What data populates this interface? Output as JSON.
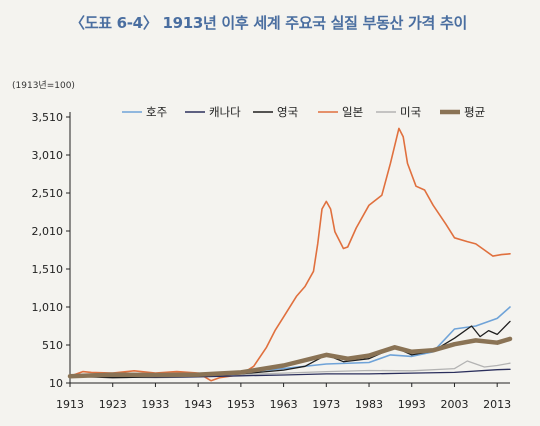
{
  "header": {
    "title": "〈도표 6-4〉 1913년 이후 세계 주요국 실질 부동산 가격 추이"
  },
  "chart_data": {
    "type": "line",
    "title": "〈도표 6-4〉 1913년 이후 세계 주요국 실질 부동산 가격 추이",
    "unit_label": "(1913년=100)",
    "xlim": [
      1913,
      2016
    ],
    "ylim": [
      10,
      3510
    ],
    "x_ticks": [
      "1913",
      "1923",
      "1933",
      "1943",
      "1953",
      "1963",
      "1973",
      "1983",
      "1993",
      "2003",
      "2013"
    ],
    "y_ticks": [
      "10",
      "510",
      "1,010",
      "1,510",
      "2,010",
      "2,510",
      "3,010",
      "3,510"
    ],
    "legend_position": "top",
    "grid": false,
    "series": [
      {
        "name": "호주",
        "color": "#6fa3d8",
        "width": 1.6,
        "points": [
          [
            1913,
            100
          ],
          [
            1923,
            130
          ],
          [
            1933,
            110
          ],
          [
            1943,
            115
          ],
          [
            1953,
            150
          ],
          [
            1963,
            200
          ],
          [
            1973,
            260
          ],
          [
            1983,
            280
          ],
          [
            1988,
            380
          ],
          [
            1993,
            360
          ],
          [
            1998,
            420
          ],
          [
            2003,
            720
          ],
          [
            2008,
            760
          ],
          [
            2013,
            860
          ],
          [
            2016,
            1010
          ]
        ]
      },
      {
        "name": "캐나다",
        "color": "#2b2f5c",
        "width": 1.3,
        "points": [
          [
            1913,
            100
          ],
          [
            1923,
            95
          ],
          [
            1933,
            85
          ],
          [
            1943,
            90
          ],
          [
            1953,
            105
          ],
          [
            1963,
            115
          ],
          [
            1973,
            130
          ],
          [
            1983,
            130
          ],
          [
            1993,
            140
          ],
          [
            2003,
            150
          ],
          [
            2013,
            185
          ],
          [
            2016,
            190
          ]
        ]
      },
      {
        "name": "영국",
        "color": "#1e1e1e",
        "width": 1.3,
        "points": [
          [
            1913,
            100
          ],
          [
            1923,
            80
          ],
          [
            1933,
            90
          ],
          [
            1943,
            100
          ],
          [
            1953,
            130
          ],
          [
            1963,
            180
          ],
          [
            1968,
            230
          ],
          [
            1973,
            380
          ],
          [
            1977,
            290
          ],
          [
            1983,
            330
          ],
          [
            1989,
            480
          ],
          [
            1993,
            380
          ],
          [
            1998,
            430
          ],
          [
            2003,
            600
          ],
          [
            2007,
            760
          ],
          [
            2009,
            620
          ],
          [
            2011,
            700
          ],
          [
            2013,
            650
          ],
          [
            2016,
            820
          ]
        ]
      },
      {
        "name": "일본",
        "color": "#e0703e",
        "width": 1.6,
        "points": [
          [
            1913,
            100
          ],
          [
            1916,
            160
          ],
          [
            1918,
            150
          ],
          [
            1923,
            140
          ],
          [
            1928,
            170
          ],
          [
            1933,
            140
          ],
          [
            1938,
            160
          ],
          [
            1943,
            140
          ],
          [
            1946,
            40
          ],
          [
            1948,
            80
          ],
          [
            1953,
            120
          ],
          [
            1956,
            230
          ],
          [
            1959,
            480
          ],
          [
            1961,
            700
          ],
          [
            1963,
            880
          ],
          [
            1966,
            1150
          ],
          [
            1968,
            1280
          ],
          [
            1970,
            1480
          ],
          [
            1971,
            1850
          ],
          [
            1972,
            2300
          ],
          [
            1973,
            2400
          ],
          [
            1974,
            2300
          ],
          [
            1975,
            2000
          ],
          [
            1977,
            1780
          ],
          [
            1978,
            1800
          ],
          [
            1980,
            2050
          ],
          [
            1983,
            2350
          ],
          [
            1986,
            2480
          ],
          [
            1988,
            2900
          ],
          [
            1990,
            3360
          ],
          [
            1991,
            3250
          ],
          [
            1992,
            2900
          ],
          [
            1994,
            2600
          ],
          [
            1996,
            2550
          ],
          [
            1998,
            2350
          ],
          [
            2001,
            2100
          ],
          [
            2003,
            1920
          ],
          [
            2006,
            1870
          ],
          [
            2008,
            1840
          ],
          [
            2010,
            1760
          ],
          [
            2012,
            1680
          ],
          [
            2014,
            1700
          ],
          [
            2016,
            1710
          ]
        ]
      },
      {
        "name": "미국",
        "color": "#b3b3b3",
        "width": 1.3,
        "points": [
          [
            1913,
            100
          ],
          [
            1923,
            90
          ],
          [
            1933,
            80
          ],
          [
            1943,
            90
          ],
          [
            1953,
            120
          ],
          [
            1963,
            140
          ],
          [
            1973,
            160
          ],
          [
            1983,
            175
          ],
          [
            1993,
            170
          ],
          [
            2003,
            200
          ],
          [
            2006,
            300
          ],
          [
            2010,
            220
          ],
          [
            2013,
            240
          ],
          [
            2016,
            270
          ]
        ]
      },
      {
        "name": "평균",
        "color": "#8a7355",
        "width": 4.5,
        "points": [
          [
            1913,
            100
          ],
          [
            1923,
            120
          ],
          [
            1933,
            115
          ],
          [
            1943,
            120
          ],
          [
            1953,
            150
          ],
          [
            1963,
            240
          ],
          [
            1973,
            380
          ],
          [
            1978,
            330
          ],
          [
            1983,
            370
          ],
          [
            1989,
            480
          ],
          [
            1993,
            420
          ],
          [
            1998,
            440
          ],
          [
            2003,
            520
          ],
          [
            2008,
            570
          ],
          [
            2013,
            540
          ],
          [
            2016,
            590
          ]
        ]
      }
    ]
  }
}
